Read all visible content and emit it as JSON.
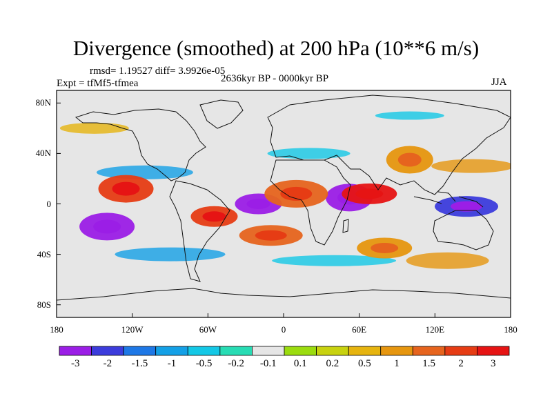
{
  "title": "Divergence (smoothed) at 200 hPa (10**6 m/s)",
  "stats": "rmsd= 1.19527 diff= 3.9926e-05",
  "experiment": "Expt = tfMf5-tfmea",
  "period": "2636kyr BP - 0000kyr BP",
  "season": "JJA",
  "map": {
    "projection": "cylindrical equidistant",
    "lon_range": [
      -180,
      180
    ],
    "lat_range": [
      -90,
      90
    ],
    "x_tick_labels": [
      "180",
      "120W",
      "60W",
      "0",
      "60E",
      "120E",
      "180"
    ],
    "y_tick_labels": [
      "80N",
      "40N",
      "0",
      "40S",
      "80S"
    ]
  },
  "colorbar": {
    "labels": [
      "-3",
      "-2",
      "-1.5",
      "-1",
      "-0.5",
      "-0.2",
      "-0.1",
      "0.1",
      "0.2",
      "0.5",
      "1",
      "1.5",
      "2",
      "3"
    ],
    "colors": [
      "#9b1ee6",
      "#3c3cdc",
      "#1e78e6",
      "#14a0e6",
      "#14c8e6",
      "#28dcb4",
      "#e6e6e6",
      "#9bdc0f",
      "#c8d20f",
      "#e6b40f",
      "#e6960f",
      "#e6641e",
      "#e63c14",
      "#e61414"
    ]
  },
  "field_features": [
    {
      "name": "strong convergence, tropical Atlantic",
      "lon": -20,
      "lat": 0,
      "value": -3
    },
    {
      "name": "convergence, central Pacific south",
      "lon": -140,
      "lat": -18,
      "value": -3
    },
    {
      "name": "convergence, western Pacific equator",
      "lon": 145,
      "lat": -2,
      "value": -2
    },
    {
      "name": "convergence, Arabian Sea",
      "lon": 52,
      "lat": 5,
      "value": -3
    },
    {
      "name": "divergence, Africa / Indian Ocean",
      "lon": 68,
      "lat": 8,
      "value": 3
    },
    {
      "name": "divergence, West Africa",
      "lon": 10,
      "lat": 8,
      "value": 1.5
    },
    {
      "name": "divergence, South America",
      "lon": -55,
      "lat": -10,
      "value": 2
    },
    {
      "name": "divergence, north-east Pacific",
      "lon": -125,
      "lat": 12,
      "value": 2
    },
    {
      "name": "divergence, tropical South Atlantic",
      "lon": -10,
      "lat": -25,
      "value": 1.5
    },
    {
      "name": "divergence, Asia mid-latitudes",
      "lon": 100,
      "lat": 35,
      "value": 1
    },
    {
      "name": "divergence, southern Indian Ocean",
      "lon": 80,
      "lat": -35,
      "value": 1
    }
  ]
}
